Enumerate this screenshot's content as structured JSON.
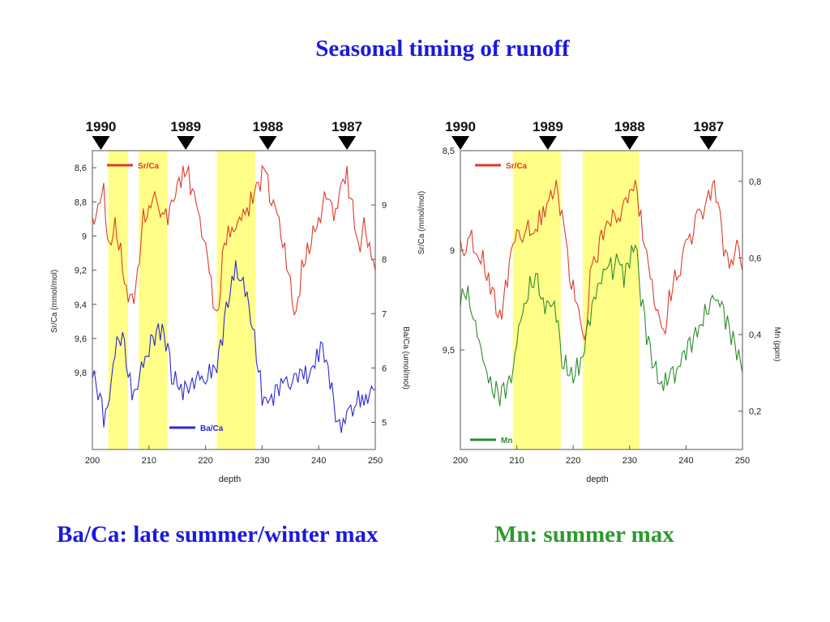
{
  "title": "Seasonal timing of runoff",
  "captions": {
    "left": "Ba/Ca: late summer/winter max",
    "right": "Mn: summer max"
  },
  "colors": {
    "title": "#1a1adc",
    "caption_left": "#1a1adc",
    "caption_right": "#2e9a2e",
    "srca": "#e03a2a",
    "baca": "#2a2ad0",
    "mn": "#2e8b2e",
    "highlight": "#ffff88"
  },
  "chart_data": [
    {
      "type": "line",
      "xlabel": "depth",
      "xlim": [
        200,
        250
      ],
      "xticks": [
        200,
        210,
        220,
        230,
        240,
        250
      ],
      "year_markers": [
        {
          "label": "1990",
          "depth": 201.5
        },
        {
          "label": "1989",
          "depth": 216.5
        },
        {
          "label": "1988",
          "depth": 231
        },
        {
          "label": "1987",
          "depth": 245
        }
      ],
      "highlight_bands": [
        [
          202.8,
          206.3
        ],
        [
          208.2,
          213.3
        ],
        [
          222,
          228.8
        ]
      ],
      "left_axis": {
        "label": "Sr/Ca (mmol/mol)",
        "inverted": true,
        "lim": [
          8.5,
          10.25
        ],
        "ticks": [
          "8,6",
          "8,8",
          "9",
          "9,2",
          "9,4",
          "9,6",
          "9,8"
        ],
        "tick_values": [
          8.6,
          8.8,
          9.0,
          9.2,
          9.4,
          9.6,
          9.8
        ]
      },
      "right_axis": {
        "label": "Ba/Ca (umol/mol)",
        "lim": [
          4.5,
          10
        ],
        "ticks": [
          "5",
          "6",
          "7",
          "8",
          "9"
        ],
        "tick_values": [
          5,
          6,
          7,
          8,
          9
        ]
      },
      "legend": [
        {
          "name": "Sr/Ca",
          "placement": "top-left"
        },
        {
          "name": "Ba/Ca",
          "placement": "bottom-center"
        }
      ],
      "series": [
        {
          "name": "Sr/Ca",
          "axis": "left",
          "x": [
            200,
            202,
            203,
            204,
            205,
            206,
            207,
            208,
            209,
            211,
            213,
            214,
            215,
            216,
            217,
            218,
            219,
            220,
            221,
            222,
            223,
            224,
            226,
            228,
            229,
            230,
            231,
            232,
            233,
            234,
            235,
            236,
            237,
            238,
            239,
            240,
            241,
            242,
            243,
            244,
            245,
            246,
            247,
            248,
            249,
            250
          ],
          "values": [
            8.95,
            8.75,
            9.1,
            8.95,
            9.1,
            9.35,
            9.4,
            9.25,
            8.9,
            8.8,
            8.9,
            8.85,
            8.75,
            8.65,
            8.65,
            8.8,
            8.95,
            9.1,
            9.3,
            9.5,
            9.15,
            9.0,
            8.95,
            8.8,
            8.75,
            8.65,
            8.7,
            8.85,
            8.95,
            9.1,
            9.3,
            9.5,
            9.2,
            9.1,
            9.0,
            8.95,
            8.8,
            8.85,
            8.9,
            8.75,
            8.65,
            8.85,
            9.1,
            8.95,
            9.1,
            9.2
          ]
        },
        {
          "name": "Ba/Ca",
          "axis": "right",
          "x": [
            200,
            201,
            202,
            203,
            204,
            205,
            206,
            207,
            208,
            209,
            210,
            211,
            212,
            213,
            214,
            216,
            218,
            220,
            221,
            222,
            223,
            224,
            225,
            226,
            227,
            228,
            229,
            230,
            232,
            235,
            238,
            240,
            241,
            242,
            243,
            244,
            246,
            248,
            250
          ],
          "values": [
            6.0,
            5.6,
            5.1,
            5.6,
            6.4,
            6.6,
            6.2,
            5.6,
            5.8,
            6.2,
            6.4,
            6.6,
            6.7,
            6.5,
            5.9,
            5.6,
            5.8,
            5.9,
            6.0,
            6.1,
            6.6,
            7.3,
            7.8,
            7.8,
            7.5,
            7.0,
            6.3,
            5.5,
            5.5,
            5.8,
            5.9,
            6.3,
            6.3,
            5.8,
            5.2,
            5.0,
            5.3,
            5.5,
            5.6
          ]
        }
      ]
    },
    {
      "type": "line",
      "xlabel": "depth",
      "xlim": [
        200,
        250
      ],
      "xticks": [
        200,
        210,
        220,
        230,
        240,
        250
      ],
      "year_markers": [
        {
          "label": "1990",
          "depth": 200
        },
        {
          "label": "1989",
          "depth": 215.5
        },
        {
          "label": "1988",
          "depth": 230
        },
        {
          "label": "1987",
          "depth": 244
        }
      ],
      "highlight_bands": [
        [
          209.3,
          217.8
        ],
        [
          221.7,
          231.7
        ]
      ],
      "left_axis": {
        "label": "Sr/Ca (mmol/mol)",
        "inverted": true,
        "lim": [
          8.5,
          10.0
        ],
        "ticks": [
          "8,5",
          "9",
          "9,5"
        ],
        "tick_values": [
          8.5,
          9.0,
          9.5
        ]
      },
      "right_axis": {
        "label": "Mn (ppm)",
        "lim": [
          0.1,
          0.88
        ],
        "ticks": [
          "0,2",
          "0,4",
          "0,6",
          "0,8"
        ],
        "tick_values": [
          0.2,
          0.4,
          0.6,
          0.8
        ]
      },
      "legend": [
        {
          "name": "Sr/Ca",
          "placement": "top-left"
        },
        {
          "name": "Mn",
          "placement": "bottom-left"
        }
      ],
      "series": [
        {
          "name": "Sr/Ca",
          "axis": "left",
          "x": [
            200,
            202,
            204,
            206,
            207,
            208,
            209,
            210,
            212,
            214,
            216,
            217,
            218,
            219,
            220,
            221,
            222,
            223,
            225,
            227,
            229,
            230,
            231,
            232,
            233,
            234,
            235,
            236,
            237,
            238,
            240,
            242,
            244,
            245,
            246,
            247,
            248,
            249,
            250
          ],
          "values": [
            9.0,
            8.95,
            9.05,
            9.25,
            9.35,
            9.2,
            9.05,
            8.95,
            8.9,
            8.85,
            8.75,
            8.7,
            8.85,
            9.05,
            9.2,
            9.35,
            9.5,
            9.15,
            8.95,
            8.85,
            8.8,
            8.75,
            8.7,
            8.85,
            9.05,
            9.2,
            9.35,
            9.45,
            9.25,
            9.15,
            9.0,
            8.85,
            8.75,
            8.7,
            8.85,
            9.05,
            9.1,
            9.0,
            9.1
          ]
        },
        {
          "name": "Mn",
          "axis": "right",
          "x": [
            200,
            201,
            202,
            203,
            204,
            205,
            206,
            207,
            208,
            209,
            210,
            211,
            212,
            213,
            214,
            215,
            216,
            217,
            218,
            219,
            220,
            221,
            222,
            223,
            224,
            225,
            226,
            227,
            228,
            229,
            230,
            231,
            232,
            233,
            234,
            235,
            236,
            238,
            240,
            241,
            242,
            243,
            244,
            245,
            246,
            247,
            248,
            249,
            250
          ],
          "values": [
            0.5,
            0.52,
            0.48,
            0.42,
            0.36,
            0.3,
            0.26,
            0.24,
            0.26,
            0.3,
            0.4,
            0.48,
            0.52,
            0.55,
            0.53,
            0.48,
            0.5,
            0.46,
            0.34,
            0.32,
            0.3,
            0.32,
            0.38,
            0.45,
            0.52,
            0.56,
            0.6,
            0.57,
            0.62,
            0.55,
            0.6,
            0.66,
            0.5,
            0.4,
            0.34,
            0.3,
            0.28,
            0.3,
            0.36,
            0.38,
            0.42,
            0.45,
            0.48,
            0.52,
            0.5,
            0.44,
            0.4,
            0.36,
            0.3
          ]
        }
      ]
    }
  ]
}
